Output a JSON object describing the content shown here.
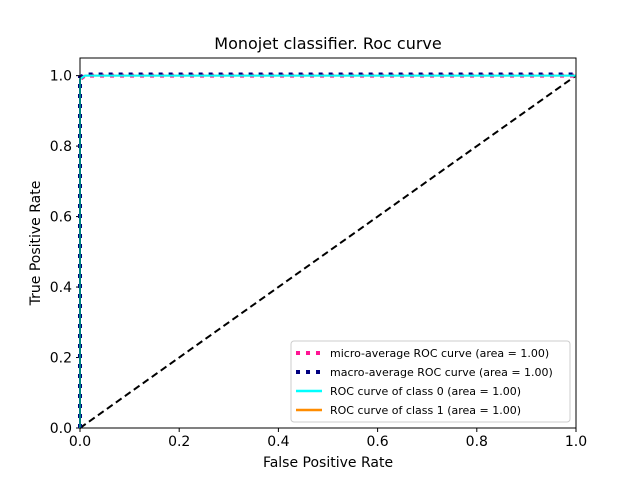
{
  "chart_data": {
    "type": "line",
    "title": "Monojet classifier. Roc curve",
    "xlabel": "False Positive Rate",
    "ylabel": "True Positive Rate",
    "xlim": [
      0.0,
      1.0
    ],
    "ylim": [
      0.0,
      1.05
    ],
    "xticks": [
      "0.0",
      "0.2",
      "0.4",
      "0.6",
      "0.8",
      "1.0"
    ],
    "yticks": [
      "0.0",
      "0.2",
      "0.4",
      "0.6",
      "0.8",
      "1.0"
    ],
    "grid": false,
    "legend_position": "lower-right",
    "series": [
      {
        "name": "micro-average ROC curve (area = 1.00)",
        "color": "#ff1493",
        "style": "dotted",
        "x": [
          0.0,
          0.0,
          0.01,
          1.0
        ],
        "y": [
          0.0,
          0.99,
          1.0,
          1.0
        ]
      },
      {
        "name": "macro-average ROC curve (area = 1.00)",
        "color": "#000080",
        "style": "dotted",
        "x": [
          0.0,
          0.0,
          0.01,
          1.0
        ],
        "y": [
          0.0,
          0.995,
          1.003,
          1.003
        ]
      },
      {
        "name": "ROC curve of class 0 (area = 1.00)",
        "color": "#00ffff",
        "style": "solid",
        "x": [
          0.0,
          0.0,
          0.01,
          1.0
        ],
        "y": [
          0.0,
          0.99,
          1.0,
          1.0
        ]
      },
      {
        "name": "ROC curve of class 1 (area = 1.00)",
        "color": "#ff8c00",
        "style": "solid",
        "x": [
          0.0,
          0.0,
          0.01,
          1.0
        ],
        "y": [
          0.0,
          0.99,
          1.0,
          1.0
        ]
      }
    ],
    "reference_line": {
      "color": "#000000",
      "style": "dashed",
      "x": [
        0.0,
        1.0
      ],
      "y": [
        0.0,
        1.0
      ]
    }
  }
}
